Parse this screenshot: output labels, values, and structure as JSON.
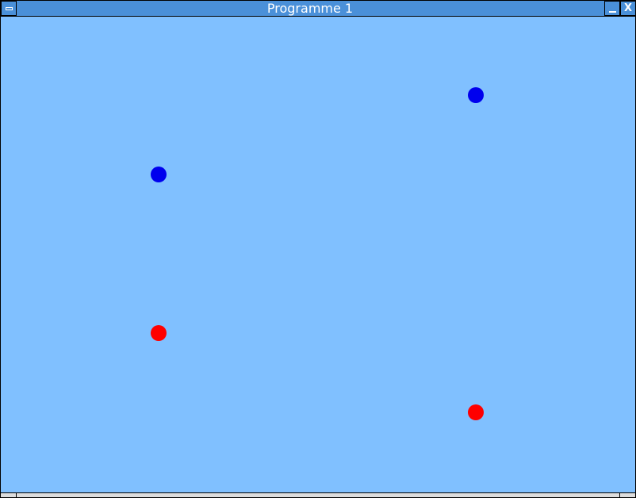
{
  "window": {
    "title": "Programme 1",
    "close_label": "X"
  },
  "colors": {
    "background": "#80c0ff",
    "titlebar": "#4a90d9",
    "blue_dot": "#0000ee",
    "red_dot": "#ff0000"
  },
  "dots": [
    {
      "color": "blue",
      "hex": "#0000ee"
    },
    {
      "color": "blue",
      "hex": "#0000ee"
    },
    {
      "color": "red",
      "hex": "#ff0000"
    },
    {
      "color": "red",
      "hex": "#ff0000"
    }
  ]
}
